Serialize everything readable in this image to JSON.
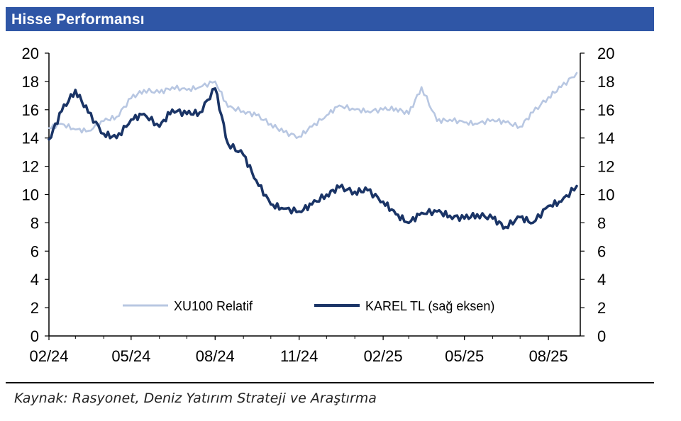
{
  "title": "Hisse Performansı",
  "source": "Kaynak: Rasyonet, Deniz Yatırım Strateji ve Araştırma",
  "colors": {
    "header_bg": "#2f56a6",
    "xu100": "#b8c7e2",
    "karel": "#1a3466"
  },
  "chart_data": {
    "type": "line",
    "x_tick_labels": [
      "02/24",
      "05/24",
      "08/24",
      "11/24",
      "02/25",
      "05/25",
      "08/25"
    ],
    "yticks_left": [
      "0",
      "2",
      "4",
      "6",
      "8",
      "10",
      "12",
      "14",
      "16",
      "18",
      "20"
    ],
    "yticks_right": [
      "0",
      "2",
      "4",
      "6",
      "8",
      "10",
      "12",
      "14",
      "16",
      "18",
      "20"
    ],
    "ylim_left": [
      0,
      20
    ],
    "ylim_right": [
      0,
      20
    ],
    "x": [
      "2024-02-01",
      "2024-02-15",
      "2024-03-01",
      "2024-03-15",
      "2024-04-01",
      "2024-04-15",
      "2024-05-01",
      "2024-05-15",
      "2024-06-01",
      "2024-06-15",
      "2024-07-01",
      "2024-07-15",
      "2024-08-01",
      "2024-08-15",
      "2024-09-01",
      "2024-09-15",
      "2024-10-01",
      "2024-10-15",
      "2024-11-01",
      "2024-11-15",
      "2024-12-01",
      "2024-12-15",
      "2025-01-01",
      "2025-01-15",
      "2025-02-01",
      "2025-02-15",
      "2025-03-01",
      "2025-03-15",
      "2025-04-01",
      "2025-04-15",
      "2025-05-01",
      "2025-05-15",
      "2025-06-01",
      "2025-06-15",
      "2025-07-01",
      "2025-07-15",
      "2025-08-01",
      "2025-08-15",
      "2025-09-01"
    ],
    "legend_position": "bottom",
    "grid": false,
    "series": [
      {
        "name": "XU100 Relatif",
        "axis": "left",
        "color": "#b8c7e2",
        "values": [
          14.7,
          15.0,
          14.6,
          14.5,
          15.2,
          15.5,
          16.8,
          17.4,
          17.2,
          17.6,
          17.4,
          17.6,
          18.0,
          16.2,
          15.9,
          15.6,
          15.0,
          14.4,
          14.1,
          14.8,
          15.6,
          16.3,
          16.0,
          15.9,
          16.0,
          16.1,
          15.7,
          17.6,
          15.2,
          15.3,
          15.1,
          15.0,
          15.3,
          15.1,
          14.8,
          15.8,
          16.9,
          17.6,
          18.6
        ]
      },
      {
        "name": "KAREL TL (sağ eksen)",
        "axis": "right",
        "color": "#1a3466",
        "values": [
          13.9,
          15.9,
          17.4,
          15.8,
          14.3,
          14.0,
          15.3,
          15.7,
          14.8,
          16.0,
          15.7,
          15.8,
          17.5,
          13.6,
          12.8,
          11.0,
          9.3,
          9.0,
          8.8,
          9.3,
          10.0,
          10.5,
          10.2,
          10.3,
          9.5,
          8.6,
          8.0,
          8.7,
          8.8,
          8.5,
          8.3,
          8.6,
          8.3,
          7.7,
          8.4,
          8.0,
          9.2,
          9.5,
          10.6
        ]
      }
    ]
  }
}
